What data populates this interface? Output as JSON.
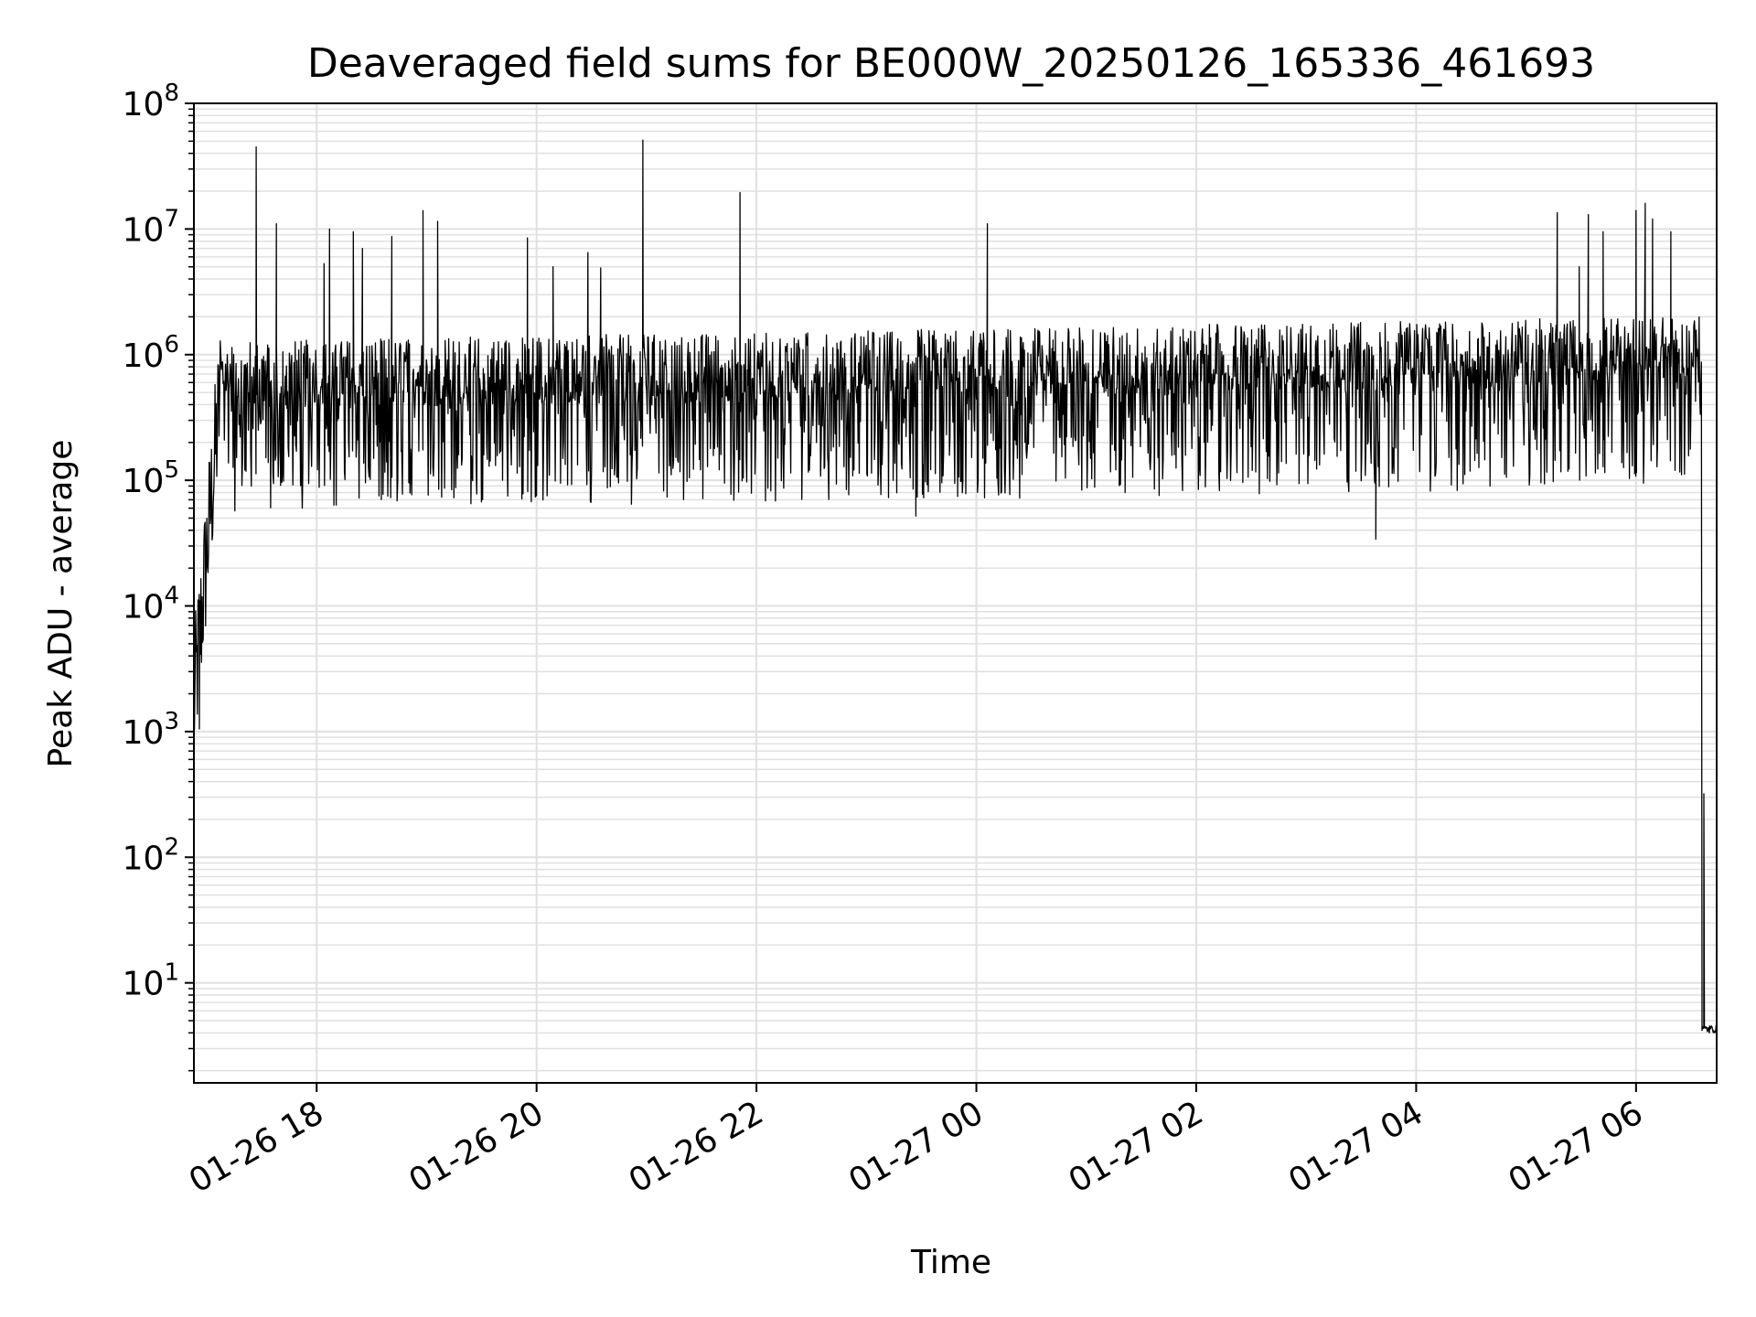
{
  "chart_data": {
    "type": "line",
    "title": "Deaveraged field sums for BE000W_20250126_165336_461693",
    "xlabel": "Time",
    "ylabel": "Peak ADU - average",
    "yscale": "log",
    "xlim": [
      "2025-01-26 16:53",
      "2025-01-27 06:44"
    ],
    "ylim": [
      1.6,
      100000000
    ],
    "grid": true,
    "line_color": "#000000",
    "grid_color": "#e0e0e0",
    "x_ticks": [
      {
        "value": "2025-01-26 18:00",
        "label": "01-26 18"
      },
      {
        "value": "2025-01-26 20:00",
        "label": "01-26 20"
      },
      {
        "value": "2025-01-26 22:00",
        "label": "01-26 22"
      },
      {
        "value": "2025-01-27 00:00",
        "label": "01-27 00"
      },
      {
        "value": "2025-01-27 02:00",
        "label": "01-27 02"
      },
      {
        "value": "2025-01-27 04:00",
        "label": "01-27 04"
      },
      {
        "value": "2025-01-27 06:00",
        "label": "01-27 06"
      }
    ],
    "y_ticks": [
      {
        "value": 10,
        "base": "10",
        "exp": "1"
      },
      {
        "value": 100,
        "base": "10",
        "exp": "2"
      },
      {
        "value": 1000,
        "base": "10",
        "exp": "3"
      },
      {
        "value": 10000,
        "base": "10",
        "exp": "4"
      },
      {
        "value": 100000,
        "base": "10",
        "exp": "5"
      },
      {
        "value": 1000000,
        "base": "10",
        "exp": "6"
      },
      {
        "value": 10000000,
        "base": "10",
        "exp": "7"
      },
      {
        "value": 100000000,
        "base": "10",
        "exp": "8"
      }
    ],
    "series": [
      {
        "description": "Noisy time series of peak ADU minus average; values fluctuate between roughly 5e4 and 2e6 with occasional spikes to ~1e7-5e7, rising from ~1e3 at start and dropping to ~4 at end",
        "spikes": [
          {
            "t": "2025-01-26 17:27",
            "y": 45000000
          },
          {
            "t": "2025-01-26 17:38",
            "y": 11000000
          },
          {
            "t": "2025-01-26 18:04",
            "y": 5300000
          },
          {
            "t": "2025-01-26 18:07",
            "y": 10000000
          },
          {
            "t": "2025-01-26 18:20",
            "y": 9500000
          },
          {
            "t": "2025-01-26 18:25",
            "y": 7000000
          },
          {
            "t": "2025-01-26 18:41",
            "y": 8700000
          },
          {
            "t": "2025-01-26 18:58",
            "y": 14000000
          },
          {
            "t": "2025-01-26 19:06",
            "y": 11500000
          },
          {
            "t": "2025-01-26 19:55",
            "y": 8500000
          },
          {
            "t": "2025-01-26 20:09",
            "y": 5000000
          },
          {
            "t": "2025-01-26 20:28",
            "y": 6500000
          },
          {
            "t": "2025-01-26 20:35",
            "y": 4900000
          },
          {
            "t": "2025-01-26 20:58",
            "y": 51000000
          },
          {
            "t": "2025-01-26 21:51",
            "y": 19500000
          },
          {
            "t": "2025-01-27 00:06",
            "y": 11000000
          },
          {
            "t": "2025-01-27 05:17",
            "y": 13500000
          },
          {
            "t": "2025-01-27 05:29",
            "y": 5000000
          },
          {
            "t": "2025-01-27 05:34",
            "y": 13000000
          },
          {
            "t": "2025-01-27 05:42",
            "y": 9500000
          },
          {
            "t": "2025-01-27 06:00",
            "y": 14000000
          },
          {
            "t": "2025-01-27 06:05",
            "y": 16000000
          },
          {
            "t": "2025-01-27 06:09",
            "y": 12000000
          },
          {
            "t": "2025-01-27 06:19",
            "y": 9500000
          }
        ],
        "dips": [
          {
            "t": "2025-01-26 16:56",
            "y": 1050
          },
          {
            "t": "2025-01-26 23:27",
            "y": 52000
          },
          {
            "t": "2025-01-27 03:38",
            "y": 34000
          },
          {
            "t": "2025-01-27 06:37",
            "y": 320
          },
          {
            "t": "2025-01-27 06:40",
            "y": 4
          }
        ]
      }
    ]
  }
}
